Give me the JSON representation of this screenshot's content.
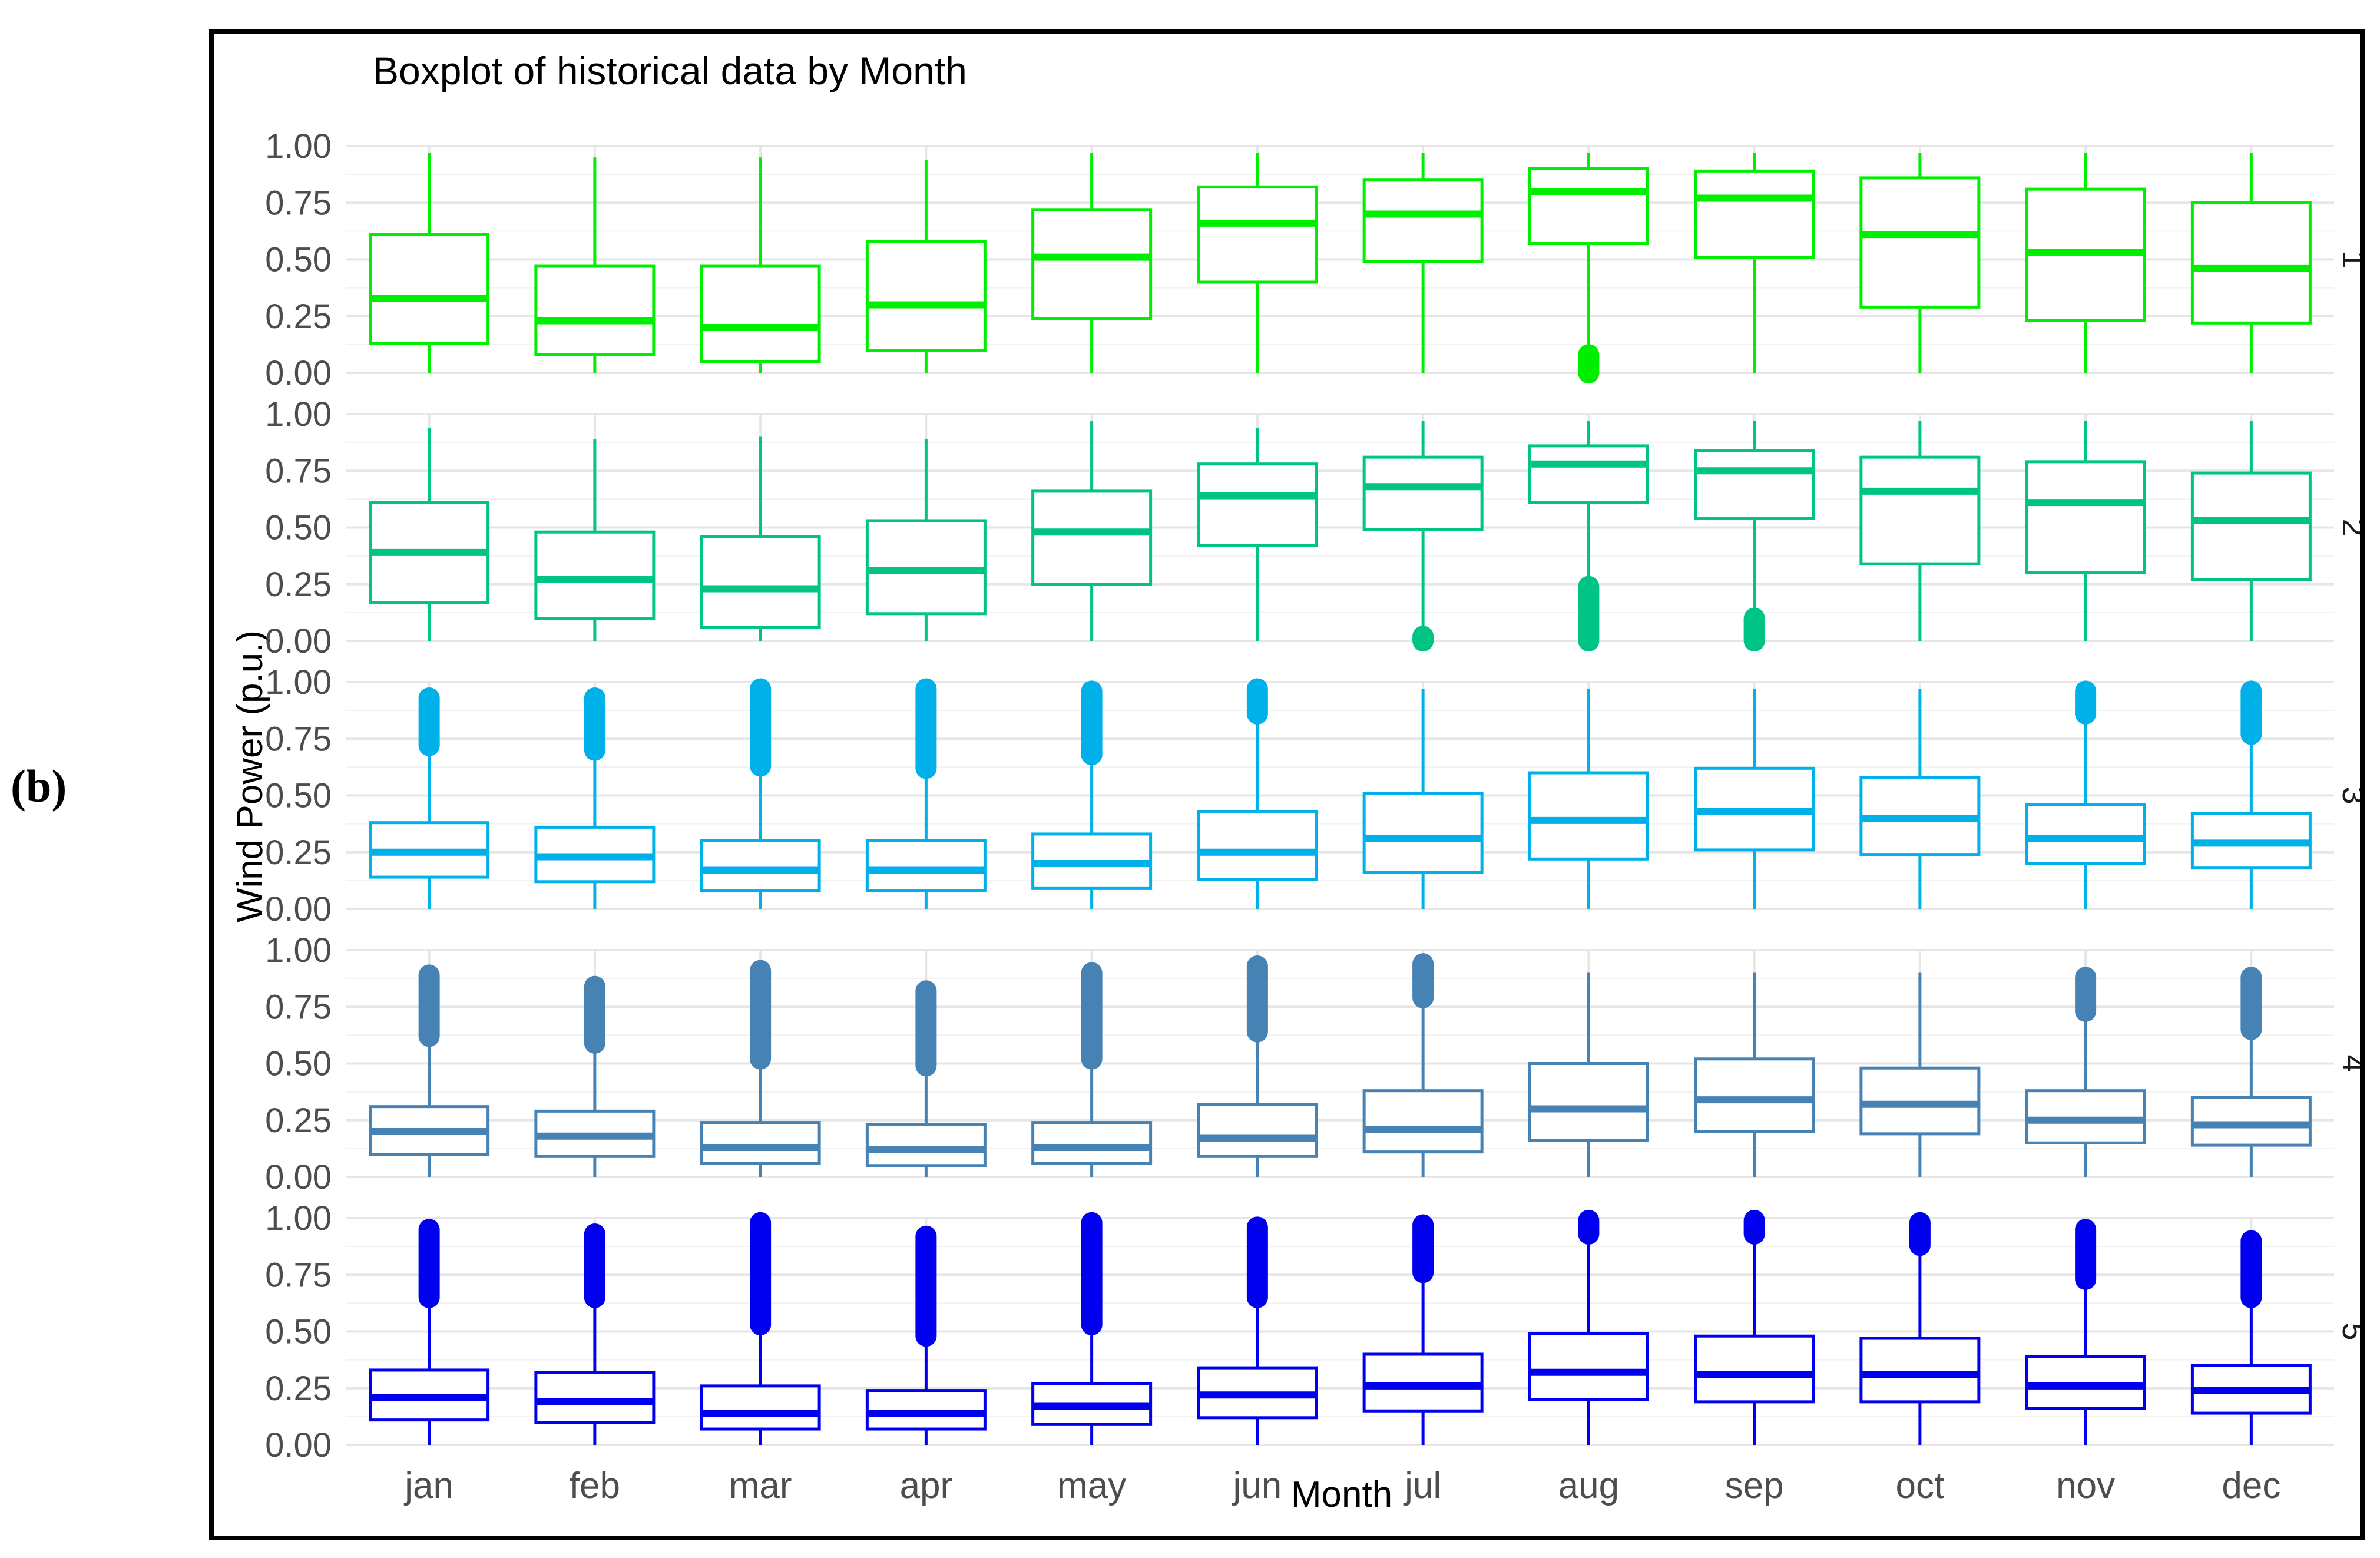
{
  "panel_label": "(b)",
  "chart_data": {
    "type": "boxplot",
    "title": "Boxplot of historical data by Month",
    "xlabel": "Month",
    "ylabel": "Wind Power (p.u.)",
    "categories": [
      "jan",
      "feb",
      "mar",
      "apr",
      "may",
      "jun",
      "jul",
      "aug",
      "sep",
      "oct",
      "nov",
      "dec"
    ],
    "ylim": [
      0,
      1
    ],
    "yticks": [
      "0.00",
      "0.25",
      "0.50",
      "0.75",
      "1.00"
    ],
    "facets": [
      {
        "label": "1",
        "color": "#00ee00",
        "boxes": [
          {
            "wl": 0.0,
            "q1": 0.13,
            "med": 0.33,
            "q3": 0.61,
            "wh": 0.97,
            "out": []
          },
          {
            "wl": 0.0,
            "q1": 0.08,
            "med": 0.23,
            "q3": 0.47,
            "wh": 0.95,
            "out": []
          },
          {
            "wl": 0.0,
            "q1": 0.05,
            "med": 0.2,
            "q3": 0.47,
            "wh": 0.95,
            "out": []
          },
          {
            "wl": 0.0,
            "q1": 0.1,
            "med": 0.3,
            "q3": 0.58,
            "wh": 0.94,
            "out": []
          },
          {
            "wl": 0.0,
            "q1": 0.24,
            "med": 0.51,
            "q3": 0.72,
            "wh": 0.97,
            "out": []
          },
          {
            "wl": 0.0,
            "q1": 0.4,
            "med": 0.66,
            "q3": 0.82,
            "wh": 0.97,
            "out": []
          },
          {
            "wl": 0.0,
            "q1": 0.49,
            "med": 0.7,
            "q3": 0.85,
            "wh": 0.97,
            "out": []
          },
          {
            "wl": 0.11,
            "q1": 0.57,
            "med": 0.8,
            "q3": 0.9,
            "wh": 0.97,
            "out": [
              0.0,
              0.08
            ]
          },
          {
            "wl": 0.0,
            "q1": 0.51,
            "med": 0.77,
            "q3": 0.89,
            "wh": 0.97,
            "out": []
          },
          {
            "wl": 0.0,
            "q1": 0.29,
            "med": 0.61,
            "q3": 0.86,
            "wh": 0.97,
            "out": []
          },
          {
            "wl": 0.0,
            "q1": 0.23,
            "med": 0.53,
            "q3": 0.81,
            "wh": 0.97,
            "out": []
          },
          {
            "wl": 0.0,
            "q1": 0.22,
            "med": 0.46,
            "q3": 0.75,
            "wh": 0.97,
            "out": []
          }
        ]
      },
      {
        "label": "2",
        "color": "#00c485",
        "boxes": [
          {
            "wl": 0.0,
            "q1": 0.17,
            "med": 0.39,
            "q3": 0.61,
            "wh": 0.94,
            "out": []
          },
          {
            "wl": 0.0,
            "q1": 0.1,
            "med": 0.27,
            "q3": 0.48,
            "wh": 0.89,
            "out": []
          },
          {
            "wl": 0.0,
            "q1": 0.06,
            "med": 0.23,
            "q3": 0.46,
            "wh": 0.9,
            "out": []
          },
          {
            "wl": 0.0,
            "q1": 0.12,
            "med": 0.31,
            "q3": 0.53,
            "wh": 0.89,
            "out": []
          },
          {
            "wl": 0.0,
            "q1": 0.25,
            "med": 0.48,
            "q3": 0.66,
            "wh": 0.97,
            "out": []
          },
          {
            "wl": 0.0,
            "q1": 0.42,
            "med": 0.64,
            "q3": 0.78,
            "wh": 0.94,
            "out": []
          },
          {
            "wl": 0.05,
            "q1": 0.49,
            "med": 0.68,
            "q3": 0.81,
            "wh": 0.97,
            "out": [
              0.0,
              0.02
            ]
          },
          {
            "wl": 0.27,
            "q1": 0.61,
            "med": 0.78,
            "q3": 0.86,
            "wh": 0.97,
            "out": [
              0.0,
              0.24
            ]
          },
          {
            "wl": 0.13,
            "q1": 0.54,
            "med": 0.75,
            "q3": 0.84,
            "wh": 0.97,
            "out": [
              0.0,
              0.1
            ]
          },
          {
            "wl": 0.0,
            "q1": 0.34,
            "med": 0.66,
            "q3": 0.81,
            "wh": 0.97,
            "out": []
          },
          {
            "wl": 0.0,
            "q1": 0.3,
            "med": 0.61,
            "q3": 0.79,
            "wh": 0.97,
            "out": []
          },
          {
            "wl": 0.0,
            "q1": 0.27,
            "med": 0.53,
            "q3": 0.74,
            "wh": 0.97,
            "out": []
          }
        ]
      },
      {
        "label": "3",
        "color": "#00b0e8",
        "boxes": [
          {
            "wl": 0.0,
            "q1": 0.14,
            "med": 0.25,
            "q3": 0.38,
            "wh": 0.71,
            "out": [
              0.72,
              0.93
            ]
          },
          {
            "wl": 0.0,
            "q1": 0.12,
            "med": 0.23,
            "q3": 0.36,
            "wh": 0.69,
            "out": [
              0.7,
              0.93
            ]
          },
          {
            "wl": 0.0,
            "q1": 0.08,
            "med": 0.17,
            "q3": 0.3,
            "wh": 0.62,
            "out": [
              0.63,
              0.97
            ]
          },
          {
            "wl": 0.0,
            "q1": 0.08,
            "med": 0.17,
            "q3": 0.3,
            "wh": 0.61,
            "out": [
              0.62,
              0.97
            ]
          },
          {
            "wl": 0.0,
            "q1": 0.09,
            "med": 0.2,
            "q3": 0.33,
            "wh": 0.67,
            "out": [
              0.68,
              0.96
            ]
          },
          {
            "wl": 0.0,
            "q1": 0.13,
            "med": 0.25,
            "q3": 0.43,
            "wh": 0.85,
            "out": [
              0.86,
              0.97
            ]
          },
          {
            "wl": 0.0,
            "q1": 0.16,
            "med": 0.31,
            "q3": 0.51,
            "wh": 0.97,
            "out": []
          },
          {
            "wl": 0.0,
            "q1": 0.22,
            "med": 0.39,
            "q3": 0.6,
            "wh": 0.97,
            "out": []
          },
          {
            "wl": 0.0,
            "q1": 0.26,
            "med": 0.43,
            "q3": 0.62,
            "wh": 0.97,
            "out": []
          },
          {
            "wl": 0.0,
            "q1": 0.24,
            "med": 0.4,
            "q3": 0.58,
            "wh": 0.97,
            "out": []
          },
          {
            "wl": 0.0,
            "q1": 0.2,
            "med": 0.31,
            "q3": 0.46,
            "wh": 0.85,
            "out": [
              0.86,
              0.96
            ]
          },
          {
            "wl": 0.0,
            "q1": 0.18,
            "med": 0.29,
            "q3": 0.42,
            "wh": 0.76,
            "out": [
              0.77,
              0.96
            ]
          }
        ]
      },
      {
        "label": "4",
        "color": "#4682b4",
        "boxes": [
          {
            "wl": 0.0,
            "q1": 0.1,
            "med": 0.2,
            "q3": 0.31,
            "wh": 0.61,
            "out": [
              0.62,
              0.89
            ]
          },
          {
            "wl": 0.0,
            "q1": 0.09,
            "med": 0.18,
            "q3": 0.29,
            "wh": 0.58,
            "out": [
              0.59,
              0.84
            ]
          },
          {
            "wl": 0.0,
            "q1": 0.06,
            "med": 0.13,
            "q3": 0.24,
            "wh": 0.51,
            "out": [
              0.52,
              0.91
            ]
          },
          {
            "wl": 0.0,
            "q1": 0.05,
            "med": 0.12,
            "q3": 0.23,
            "wh": 0.48,
            "out": [
              0.49,
              0.82
            ]
          },
          {
            "wl": 0.0,
            "q1": 0.06,
            "med": 0.13,
            "q3": 0.24,
            "wh": 0.51,
            "out": [
              0.52,
              0.9
            ]
          },
          {
            "wl": 0.0,
            "q1": 0.09,
            "med": 0.17,
            "q3": 0.32,
            "wh": 0.63,
            "out": [
              0.64,
              0.93
            ]
          },
          {
            "wl": 0.0,
            "q1": 0.11,
            "med": 0.21,
            "q3": 0.38,
            "wh": 0.78,
            "out": [
              0.79,
              0.94
            ]
          },
          {
            "wl": 0.0,
            "q1": 0.16,
            "med": 0.3,
            "q3": 0.5,
            "wh": 0.9,
            "out": []
          },
          {
            "wl": 0.0,
            "q1": 0.2,
            "med": 0.34,
            "q3": 0.52,
            "wh": 0.9,
            "out": []
          },
          {
            "wl": 0.0,
            "q1": 0.19,
            "med": 0.32,
            "q3": 0.48,
            "wh": 0.9,
            "out": []
          },
          {
            "wl": 0.0,
            "q1": 0.15,
            "med": 0.25,
            "q3": 0.38,
            "wh": 0.72,
            "out": [
              0.73,
              0.88
            ]
          },
          {
            "wl": 0.0,
            "q1": 0.14,
            "med": 0.23,
            "q3": 0.35,
            "wh": 0.64,
            "out": [
              0.65,
              0.88
            ]
          }
        ]
      },
      {
        "label": "5",
        "color": "#0000ee",
        "boxes": [
          {
            "wl": 0.0,
            "q1": 0.11,
            "med": 0.21,
            "q3": 0.33,
            "wh": 0.64,
            "out": [
              0.65,
              0.95
            ]
          },
          {
            "wl": 0.0,
            "q1": 0.1,
            "med": 0.19,
            "q3": 0.32,
            "wh": 0.64,
            "out": [
              0.65,
              0.93
            ]
          },
          {
            "wl": 0.0,
            "q1": 0.07,
            "med": 0.14,
            "q3": 0.26,
            "wh": 0.52,
            "out": [
              0.53,
              0.98
            ]
          },
          {
            "wl": 0.0,
            "q1": 0.07,
            "med": 0.14,
            "q3": 0.24,
            "wh": 0.47,
            "out": [
              0.48,
              0.92
            ]
          },
          {
            "wl": 0.0,
            "q1": 0.09,
            "med": 0.17,
            "q3": 0.27,
            "wh": 0.52,
            "out": [
              0.53,
              0.98
            ]
          },
          {
            "wl": 0.0,
            "q1": 0.12,
            "med": 0.22,
            "q3": 0.34,
            "wh": 0.64,
            "out": [
              0.65,
              0.96
            ]
          },
          {
            "wl": 0.0,
            "q1": 0.15,
            "med": 0.26,
            "q3": 0.4,
            "wh": 0.75,
            "out": [
              0.76,
              0.97
            ]
          },
          {
            "wl": 0.0,
            "q1": 0.2,
            "med": 0.32,
            "q3": 0.49,
            "wh": 0.92,
            "out": [
              0.93,
              0.99
            ]
          },
          {
            "wl": 0.0,
            "q1": 0.19,
            "med": 0.31,
            "q3": 0.48,
            "wh": 0.92,
            "out": [
              0.93,
              0.99
            ]
          },
          {
            "wl": 0.0,
            "q1": 0.19,
            "med": 0.31,
            "q3": 0.47,
            "wh": 0.87,
            "out": [
              0.88,
              0.98
            ]
          },
          {
            "wl": 0.0,
            "q1": 0.16,
            "med": 0.26,
            "q3": 0.39,
            "wh": 0.72,
            "out": [
              0.73,
              0.95
            ]
          },
          {
            "wl": 0.0,
            "q1": 0.14,
            "med": 0.24,
            "q3": 0.35,
            "wh": 0.64,
            "out": [
              0.65,
              0.9
            ]
          }
        ]
      }
    ]
  }
}
